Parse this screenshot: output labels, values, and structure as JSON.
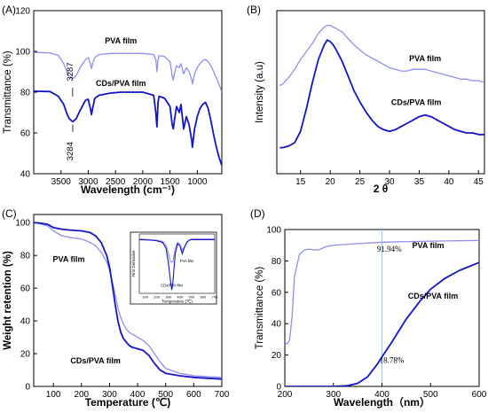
{
  "colors": {
    "light": "#8f8ff0",
    "dark": "#1414c8",
    "axis": "#000000",
    "marker_line": "#a8c4e8"
  },
  "panels": [
    {
      "id": "A",
      "letter": "(A)",
      "xlabel": "Wavelength (cm⁻¹)",
      "ylabel": "Transmittance (%)",
      "xlim": [
        4000,
        550
      ],
      "ylim": [
        40,
        120
      ],
      "xticks": [
        3500,
        3000,
        2500,
        2000,
        1500,
        1000
      ],
      "xtick_labels": [
        "3500",
        "3000",
        "2500",
        "2000",
        "1500",
        "1000"
      ],
      "yticks": [
        40,
        60,
        80,
        100,
        120
      ],
      "ytick_labels": [
        "40",
        "60",
        "80",
        "100",
        "120"
      ],
      "annotations": [
        {
          "text": "3287",
          "x": 3287,
          "y": 90,
          "rotate": true,
          "color": "#000000"
        },
        {
          "text": "3284",
          "x": 3284,
          "y": 51,
          "rotate": true,
          "color": "#000000"
        },
        {
          "text": "PVA film",
          "x": 2400,
          "y": 104,
          "rotate": false,
          "color": "#000000",
          "bold": true
        },
        {
          "text": "CDs/PVA film",
          "x": 2400,
          "y": 83,
          "rotate": false,
          "color": "#000000",
          "bold": true
        }
      ],
      "chart_data": {
        "type": "line",
        "series": [
          {
            "name": "PVA film",
            "color": "light",
            "x": [
              4000,
              3700,
              3550,
              3450,
              3400,
              3350,
              3287,
              3220,
              3150,
              3050,
              3000,
              2960,
              2940,
              2920,
              2880,
              2800,
              2600,
              2400,
              2200,
              2000,
              1800,
              1760,
              1740,
              1720,
              1700,
              1600,
              1500,
              1460,
              1440,
              1420,
              1380,
              1330,
              1300,
              1250,
              1200,
              1150,
              1100,
              1090,
              1050,
              1000,
              950,
              900,
              850,
              800,
              750,
              700,
              650,
              600,
              550
            ],
            "y": [
              99.5,
              99.3,
              98,
              94,
              90.5,
              88,
              86.5,
              88,
              92,
              96,
              97,
              94,
              91.5,
              94,
              97,
              98.5,
              99,
              99,
              99,
              99,
              98.5,
              96,
              90,
              96,
              98,
              97.5,
              95,
              88,
              86,
              89,
              93,
              92,
              94,
              89,
              92,
              90,
              86,
              84,
              89,
              92,
              94,
              95.5,
              96,
              95,
              93,
              90,
              87,
              84,
              80
            ]
          },
          {
            "name": "CDs/PVA film",
            "color": "dark",
            "x": [
              4000,
              3700,
              3550,
              3450,
              3400,
              3350,
              3284,
              3220,
              3150,
              3050,
              3000,
              2960,
              2940,
              2920,
              2880,
              2800,
              2600,
              2400,
              2200,
              2000,
              1800,
              1760,
              1740,
              1720,
              1700,
              1600,
              1500,
              1460,
              1440,
              1420,
              1380,
              1330,
              1300,
              1250,
              1200,
              1150,
              1100,
              1090,
              1050,
              1000,
              950,
              900,
              850,
              800,
              750,
              700,
              650,
              600,
              550
            ],
            "y": [
              80.5,
              80.3,
              78,
              74,
              70,
              67,
              65.5,
              67,
              71,
              76,
              76.5,
              72,
              69,
              72,
              77,
              78.5,
              79.5,
              80,
              80,
              80,
              78.5,
              70,
              63,
              75,
              78,
              77,
              73,
              64,
              62,
              66,
              73,
              70,
              74,
              62,
              68,
              64,
              56,
              53,
              62,
              68,
              72,
              74,
              75,
              72,
              66,
              59,
              53,
              48,
              44
            ]
          }
        ]
      }
    },
    {
      "id": "B",
      "letter": "(B)",
      "xlabel": "2 θ",
      "ylabel": "Intensity (a.u)",
      "xlim": [
        11,
        46
      ],
      "ylim": [
        0,
        100
      ],
      "xticks": [
        15,
        20,
        25,
        30,
        35,
        40,
        45
      ],
      "xtick_labels": [
        "15",
        "20",
        "25",
        "30",
        "35",
        "40",
        "45"
      ],
      "yticks": [],
      "ytick_labels": [],
      "annotations": [
        {
          "text": "PVA film",
          "x": 36,
          "y": 69,
          "rotate": false,
          "color": "#000000",
          "bold": true
        },
        {
          "text": "CDs/PVA film",
          "x": 34.5,
          "y": 42,
          "rotate": false,
          "color": "#000000",
          "bold": true
        }
      ],
      "chart_data": {
        "type": "line",
        "series": [
          {
            "name": "PVA film",
            "color": "light",
            "x": [
              11.5,
              12,
              13,
              14,
              15,
              16,
              17,
              18,
              19,
              19.5,
              20,
              20.5,
              21,
              22,
              23,
              24,
              25,
              26,
              27,
              28,
              29,
              30,
              31,
              32,
              33,
              34,
              35,
              36,
              37,
              38,
              39,
              40,
              41,
              42,
              43,
              44,
              45,
              46
            ],
            "y": [
              54,
              55,
              59,
              64,
              70,
              75,
              80,
              86,
              90,
              91,
              91,
              90,
              89,
              87,
              83,
              79,
              76,
              73,
              71,
              69,
              67,
              65,
              64,
              63,
              63,
              64,
              64,
              64,
              63,
              62,
              61,
              60,
              59,
              58,
              58,
              57,
              57,
              56
            ]
          },
          {
            "name": "CDs/PVA film",
            "color": "dark",
            "x": [
              11.5,
              12,
              13,
              14,
              15,
              16,
              17,
              18,
              19,
              19.5,
              20,
              20.5,
              21,
              22,
              23,
              24,
              25,
              26,
              27,
              28,
              29,
              30,
              31,
              32,
              33,
              34,
              35,
              36,
              37,
              38,
              39,
              40,
              41,
              42,
              43,
              44,
              45,
              46
            ],
            "y": [
              16,
              16,
              17,
              19,
              26,
              40,
              56,
              70,
              79,
              82,
              81,
              79,
              76,
              69,
              60,
              51,
              44,
              38,
              33,
              29,
              27,
              26,
              27,
              29,
              31,
              33,
              35,
              36,
              35,
              33,
              31,
              29,
              27,
              26,
              25,
              25,
              24,
              24
            ]
          }
        ]
      }
    },
    {
      "id": "C",
      "letter": "(C)",
      "xlabel": "Temperature (℃)",
      "ylabel": "Weight retention (%)",
      "xlim": [
        30,
        700
      ],
      "ylim": [
        0,
        105
      ],
      "xticks": [
        100,
        200,
        300,
        400,
        500,
        600,
        700
      ],
      "xtick_labels": [
        "100",
        "200",
        "300",
        "400",
        "500",
        "600",
        "700"
      ],
      "yticks": [
        0,
        20,
        40,
        60,
        80,
        100
      ],
      "ytick_labels": [
        "0",
        "20",
        "40",
        "60",
        "80",
        "100"
      ],
      "annotations": [
        {
          "text": "PVA film",
          "x": 155,
          "y": 76,
          "rotate": false,
          "color": "#000000",
          "bold": true
        },
        {
          "text": "CDs/PVA film",
          "x": 250,
          "y": 14,
          "rotate": false,
          "color": "#000000",
          "bold": true
        }
      ],
      "chart_data": {
        "type": "line",
        "series": [
          {
            "name": "PVA film",
            "color": "light",
            "x": [
              30,
              50,
              80,
              100,
              130,
              160,
              200,
              230,
              250,
              270,
              290,
              300,
              310,
              320,
              330,
              340,
              350,
              360,
              370,
              380,
              400,
              420,
              440,
              460,
              480,
              500,
              550,
              600,
              650,
              700
            ],
            "y": [
              100,
              99.5,
              98,
              95,
              92,
              91,
              90,
              88,
              86,
              82,
              76,
              71,
              64,
              56,
              48,
              42,
              38,
              35,
              33,
              32,
              30,
              28,
              25,
              20,
              15,
              11,
              8,
              6.5,
              6,
              5.5
            ]
          },
          {
            "name": "CDs/PVA film",
            "color": "dark",
            "x": [
              30,
              50,
              80,
              100,
              130,
              160,
              200,
              230,
              250,
              270,
              290,
              300,
              310,
              320,
              330,
              340,
              350,
              360,
              370,
              380,
              400,
              420,
              440,
              460,
              480,
              500,
              550,
              600,
              650,
              700
            ],
            "y": [
              100,
              99.8,
              99,
              97,
              96,
              95.5,
              95,
              94,
              92,
              88,
              80,
              73,
              62,
              50,
              40,
              33,
              29,
              27,
              25,
              24,
              23,
              22,
              19,
              14,
              10,
              8,
              6.5,
              5.5,
              5,
              4.5
            ]
          }
        ]
      },
      "inset": {
        "xlabel": "Temperature (℃)",
        "ylabel": "First Derivative",
        "xlim": [
          50,
          700
        ],
        "xticks": [
          100,
          200,
          300,
          400,
          500,
          600,
          700
        ],
        "xtick_labels": [
          "100",
          "200",
          "300",
          "400",
          "500",
          "600",
          "700"
        ],
        "labels": [
          {
            "text": "PVA film",
            "x": 460,
            "y": 0.55
          },
          {
            "text": "CDs/PVA film",
            "x": 330,
            "y": 0.12
          }
        ],
        "chart_data": {
          "type": "line",
          "series": [
            {
              "name": "PVA film",
              "color": "light",
              "x": [
                50,
                150,
                200,
                250,
                280,
                300,
                320,
                340,
                360,
                380,
                400,
                420,
                440,
                460,
                480,
                500,
                600,
                700
              ],
              "y": [
                0.96,
                0.95,
                0.94,
                0.92,
                0.85,
                0.72,
                0.55,
                0.56,
                0.8,
                0.9,
                0.86,
                0.76,
                0.83,
                0.91,
                0.94,
                0.96,
                0.96,
                0.96
              ]
            },
            {
              "name": "CDs/PVA film",
              "color": "dark",
              "x": [
                50,
                150,
                200,
                250,
                280,
                300,
                320,
                330,
                340,
                360,
                380,
                400,
                420,
                440,
                460,
                480,
                500,
                600,
                700
              ],
              "y": [
                0.95,
                0.94,
                0.93,
                0.9,
                0.8,
                0.55,
                0.2,
                0.06,
                0.2,
                0.7,
                0.88,
                0.84,
                0.7,
                0.82,
                0.9,
                0.94,
                0.95,
                0.95,
                0.95
              ]
            }
          ]
        }
      }
    },
    {
      "id": "D",
      "letter": "(D)",
      "xlabel": "Wavelength（nm）",
      "ylabel": "Transmittance (%)",
      "xlim": [
        200,
        600
      ],
      "ylim": [
        0,
        100
      ],
      "xticks": [
        200,
        300,
        400,
        500,
        600
      ],
      "xtick_labels": [
        "200",
        "300",
        "400",
        "500",
        "600"
      ],
      "yticks": [
        0,
        20,
        40,
        60,
        80,
        100
      ],
      "ytick_labels": [
        "0",
        "20",
        "40",
        "60",
        "80",
        "100"
      ],
      "vline": 400,
      "annotations": [
        {
          "text": "91.94%",
          "x": 415,
          "y": 86,
          "rotate": false,
          "color": "#000000",
          "serif": true
        },
        {
          "text": "PVA film",
          "x": 495,
          "y": 88,
          "rotate": false,
          "color": "#000000",
          "bold": true
        },
        {
          "text": "CDs/PVA film",
          "x": 505,
          "y": 56,
          "rotate": false,
          "color": "#000000",
          "bold": true
        },
        {
          "text": "18.78%",
          "x": 420,
          "y": 15,
          "rotate": false,
          "color": "#000000",
          "serif": true
        }
      ],
      "chart_data": {
        "type": "line",
        "series": [
          {
            "name": "PVA film",
            "color": "light",
            "x": [
              200,
              205,
              210,
              215,
              220,
              230,
              240,
              250,
              260,
              270,
              280,
              290,
              300,
              350,
              400,
              450,
              500,
              550,
              600
            ],
            "y": [
              28,
              27,
              30,
              45,
              70,
              84,
              87,
              87.5,
              87,
              87,
              88.5,
              89.5,
              90,
              91,
              91.9,
              92.3,
              92.6,
              92.8,
              93
            ]
          },
          {
            "name": "CDs/PVA film",
            "color": "dark",
            "x": [
              200,
              250,
              300,
              330,
              350,
              370,
              390,
              400,
              420,
              450,
              480,
              500,
              530,
              560,
              600
            ],
            "y": [
              0,
              0,
              0,
              0.5,
              2,
              6,
              14,
              18.8,
              28,
              43,
              55,
              62,
              69,
              74,
              79
            ]
          }
        ]
      }
    }
  ]
}
